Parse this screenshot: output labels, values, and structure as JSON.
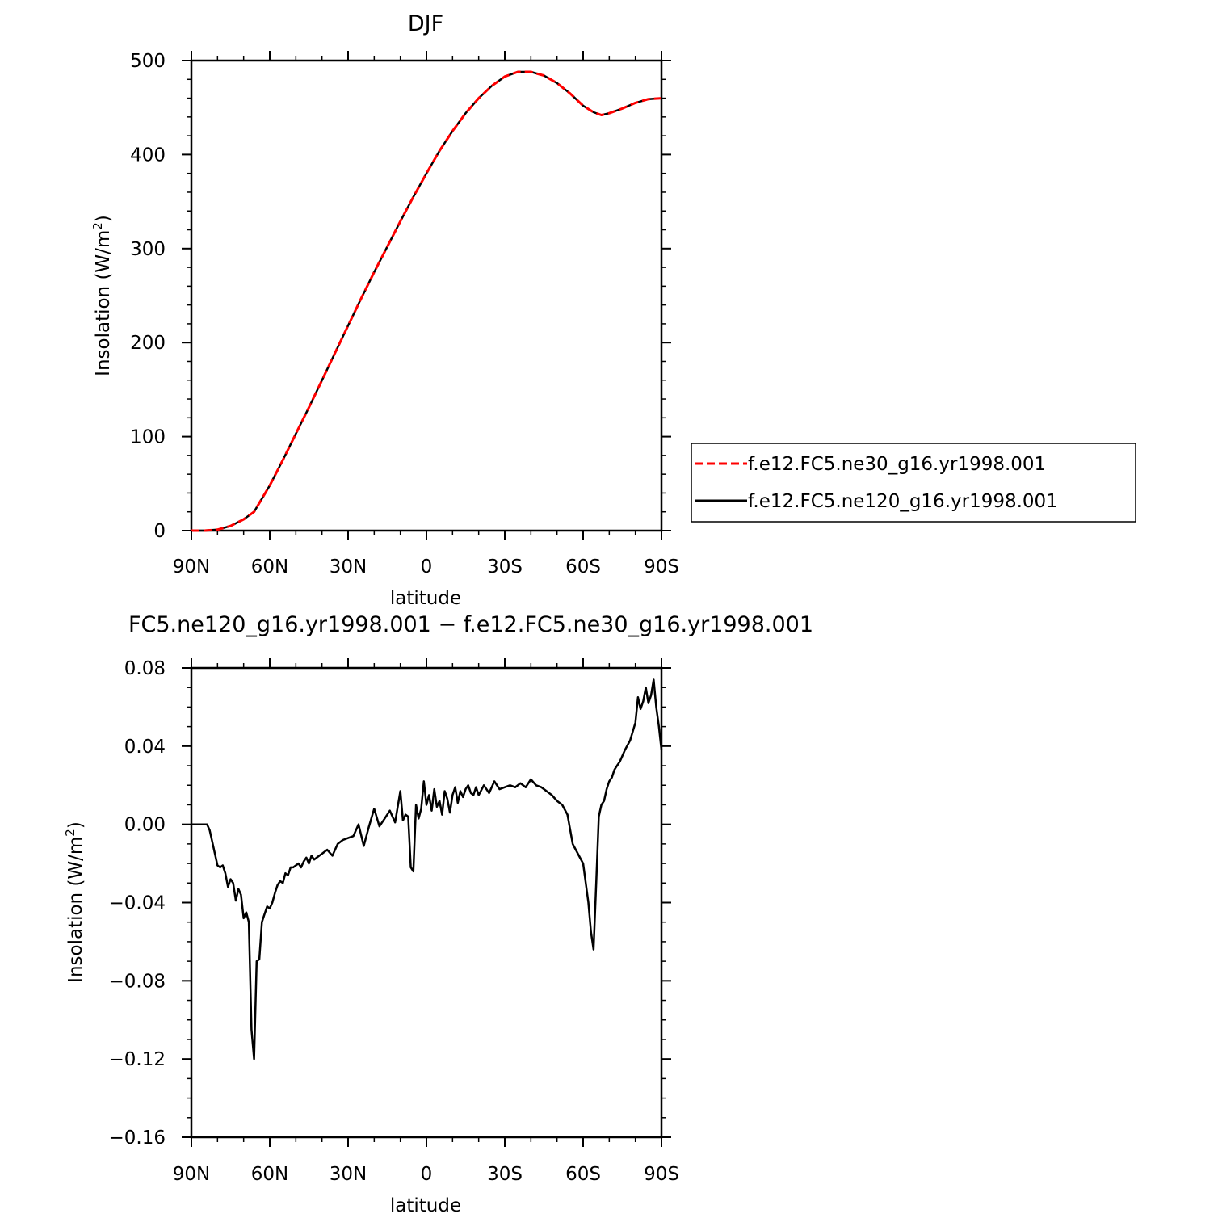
{
  "chart_data": [
    {
      "type": "line",
      "title": "DJF",
      "xlabel": "latitude",
      "ylabel": "Insolation (W/m",
      "ylabel_sup": "2",
      "ylabel_close": ")",
      "x_ticks": [
        {
          "value": 90,
          "label": "90N"
        },
        {
          "value": 60,
          "label": "60N"
        },
        {
          "value": 30,
          "label": "30N"
        },
        {
          "value": 0,
          "label": "0"
        },
        {
          "value": -30,
          "label": "30S"
        },
        {
          "value": -60,
          "label": "60S"
        },
        {
          "value": -90,
          "label": "90S"
        }
      ],
      "xlim": [
        90,
        -90
      ],
      "ylim": [
        0,
        500
      ],
      "y_ticks": [
        {
          "value": 0,
          "label": "0"
        },
        {
          "value": 100,
          "label": "100"
        },
        {
          "value": 200,
          "label": "200"
        },
        {
          "value": 300,
          "label": "300"
        },
        {
          "value": 400,
          "label": "400"
        },
        {
          "value": 500,
          "label": "500"
        }
      ],
      "legend_position": "right",
      "series": [
        {
          "name": "f.e12.FC5.ne30_g16.yr1998.001",
          "color": "#ff0000",
          "dash": "dashed",
          "x": [
            90,
            85,
            80,
            75,
            70,
            66,
            60,
            55,
            50,
            45,
            40,
            35,
            30,
            25,
            20,
            15,
            10,
            5,
            0,
            -5,
            -10,
            -15,
            -20,
            -25,
            -30,
            -35,
            -40,
            -45,
            -50,
            -55,
            -60,
            -64,
            -67,
            -70,
            -75,
            -80,
            -85,
            -90
          ],
          "y": [
            0,
            0,
            1,
            5,
            12,
            20,
            48,
            75,
            103,
            131,
            160,
            189,
            218,
            247,
            275,
            302,
            329,
            355,
            380,
            404,
            425,
            444,
            460,
            473,
            483,
            488,
            488,
            484,
            476,
            465,
            452,
            445,
            442,
            444,
            449,
            455,
            459,
            460
          ]
        },
        {
          "name": "f.e12.FC5.ne120_g16.yr1998.001",
          "color": "#000000",
          "dash": "solid",
          "x": [
            90,
            85,
            80,
            75,
            70,
            66,
            60,
            55,
            50,
            45,
            40,
            35,
            30,
            25,
            20,
            15,
            10,
            5,
            0,
            -5,
            -10,
            -15,
            -20,
            -25,
            -30,
            -35,
            -40,
            -45,
            -50,
            -55,
            -60,
            -64,
            -67,
            -70,
            -75,
            -80,
            -85,
            -90
          ],
          "y": [
            0,
            0,
            1,
            5,
            12,
            20,
            48,
            75,
            103,
            131,
            160,
            189,
            218,
            247,
            275,
            302,
            329,
            355,
            380,
            404,
            425,
            444,
            460,
            473,
            483,
            488,
            488,
            484,
            476,
            465,
            452,
            445,
            442,
            444,
            449,
            455,
            459,
            460
          ]
        }
      ]
    },
    {
      "type": "line",
      "title": "FC5.ne120_g16.yr1998.001 − f.e12.FC5.ne30_g16.yr1998.001",
      "xlabel": "latitude",
      "ylabel": "Insolation (W/m",
      "ylabel_sup": "2",
      "ylabel_close": ")",
      "x_ticks": [
        {
          "value": 90,
          "label": "90N"
        },
        {
          "value": 60,
          "label": "60N"
        },
        {
          "value": 30,
          "label": "30N"
        },
        {
          "value": 0,
          "label": "0"
        },
        {
          "value": -30,
          "label": "30S"
        },
        {
          "value": -60,
          "label": "60S"
        },
        {
          "value": -90,
          "label": "90S"
        }
      ],
      "xlim": [
        90,
        -90
      ],
      "ylim": [
        -0.16,
        0.08
      ],
      "y_ticks": [
        {
          "value": 0.08,
          "label": "0.08"
        },
        {
          "value": 0.04,
          "label": "0.04"
        },
        {
          "value": 0.0,
          "label": "0.00"
        },
        {
          "value": -0.04,
          "label": "−0.04"
        },
        {
          "value": -0.08,
          "label": "−0.08"
        },
        {
          "value": -0.12,
          "label": "−0.12"
        },
        {
          "value": -0.16,
          "label": "−0.16"
        }
      ],
      "series": [
        {
          "color": "#000000",
          "x": [
            90,
            84,
            83,
            82,
            81,
            80,
            79,
            78,
            77,
            76,
            75,
            74,
            73,
            72,
            71,
            70,
            69,
            68,
            67,
            66,
            65,
            64,
            63,
            62,
            61,
            60,
            59,
            58,
            57,
            56,
            55,
            54,
            53,
            52,
            51,
            50,
            49,
            48,
            47,
            46,
            45,
            44,
            43,
            42,
            41,
            40,
            38,
            36,
            34,
            32,
            30,
            28,
            26,
            24,
            22,
            20,
            18,
            16,
            14,
            12,
            10,
            9,
            8,
            7,
            6,
            5,
            4,
            3,
            2,
            1,
            0,
            -1,
            -2,
            -3,
            -4,
            -5,
            -6,
            -7,
            -8,
            -9,
            -10,
            -11,
            -12,
            -13,
            -14,
            -15,
            -16,
            -17,
            -18,
            -19,
            -20,
            -22,
            -24,
            -26,
            -28,
            -30,
            -32,
            -34,
            -36,
            -38,
            -40,
            -42,
            -44,
            -46,
            -48,
            -50,
            -52,
            -54,
            -56,
            -58,
            -60,
            -62,
            -63,
            -64,
            -65,
            -66,
            -67,
            -68,
            -69,
            -70,
            -71,
            -72,
            -73,
            -74,
            -76,
            -78,
            -80,
            -81,
            -82,
            -83,
            -84,
            -85,
            -86,
            -87,
            -88,
            -89,
            -90
          ],
          "y": [
            0.0,
            0.0,
            -0.003,
            -0.009,
            -0.015,
            -0.021,
            -0.022,
            -0.021,
            -0.025,
            -0.032,
            -0.028,
            -0.03,
            -0.039,
            -0.033,
            -0.036,
            -0.048,
            -0.045,
            -0.05,
            -0.105,
            -0.12,
            -0.07,
            -0.069,
            -0.05,
            -0.046,
            -0.042,
            -0.043,
            -0.04,
            -0.035,
            -0.031,
            -0.029,
            -0.03,
            -0.025,
            -0.026,
            -0.022,
            -0.022,
            -0.021,
            -0.02,
            -0.022,
            -0.019,
            -0.017,
            -0.02,
            -0.016,
            -0.018,
            -0.017,
            -0.016,
            -0.015,
            -0.013,
            -0.016,
            -0.01,
            -0.008,
            -0.007,
            -0.006,
            0.0,
            -0.011,
            -0.001,
            0.008,
            -0.001,
            0.003,
            0.007,
            0.001,
            0.017,
            0.002,
            0.005,
            0.004,
            -0.022,
            -0.024,
            0.01,
            0.003,
            0.008,
            0.022,
            0.01,
            0.015,
            0.007,
            0.018,
            0.009,
            0.012,
            0.005,
            0.017,
            0.013,
            0.006,
            0.015,
            0.019,
            0.011,
            0.017,
            0.014,
            0.018,
            0.02,
            0.016,
            0.015,
            0.019,
            0.015,
            0.02,
            0.016,
            0.022,
            0.018,
            0.019,
            0.02,
            0.019,
            0.021,
            0.019,
            0.023,
            0.02,
            0.019,
            0.017,
            0.015,
            0.012,
            0.01,
            0.005,
            -0.01,
            -0.015,
            -0.02,
            -0.04,
            -0.055,
            -0.064,
            -0.03,
            0.004,
            0.01,
            0.012,
            0.018,
            0.022,
            0.024,
            0.028,
            0.03,
            0.032,
            0.038,
            0.043,
            0.052,
            0.065,
            0.059,
            0.063,
            0.07,
            0.062,
            0.066,
            0.074,
            0.06,
            0.05,
            0.038
          ]
        }
      ]
    }
  ]
}
